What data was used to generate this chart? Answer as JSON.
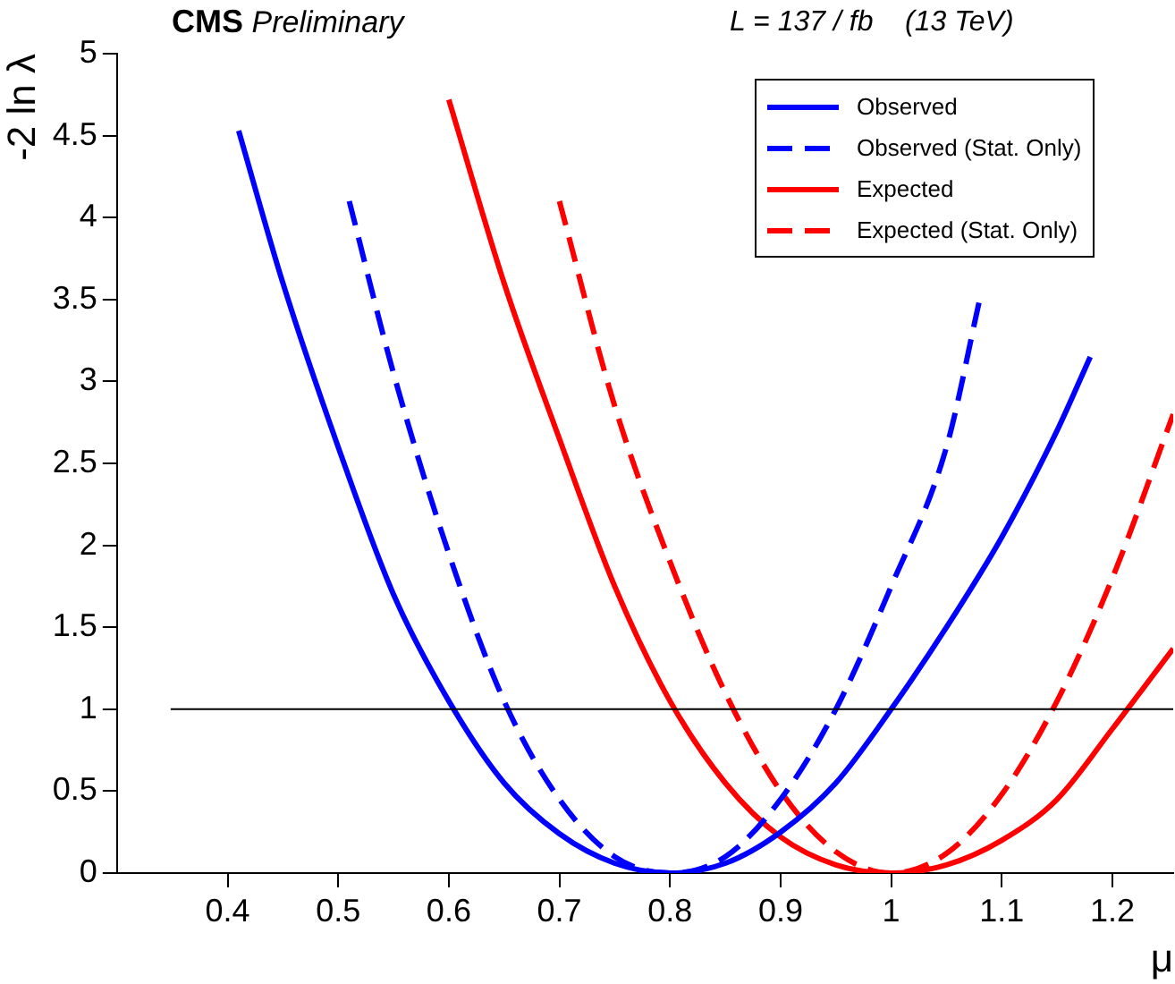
{
  "chart_data": {
    "type": "line",
    "title": "CMS",
    "subtitle": "Preliminary",
    "annotations": [
      "L = 137 / fb    (13 TeV)"
    ],
    "xlabel": "μ",
    "ylabel": "-2 ln λ",
    "xlim": [
      0.3,
      1.255
    ],
    "xticks": [
      0.4,
      0.5,
      0.6,
      0.7,
      0.8,
      0.9,
      1,
      1.1,
      1.2
    ],
    "ylim": [
      0,
      5
    ],
    "yticks": [
      0,
      0.5,
      1,
      1.5,
      2,
      2.5,
      3,
      3.5,
      4,
      4.5,
      5
    ],
    "grid": false,
    "legend": "top right",
    "marker": "none",
    "ref_lines": [
      {
        "axis": "y",
        "value": 1,
        "color": "#000000"
      }
    ],
    "series": [
      {
        "name": "Observed",
        "color": "#0000ff",
        "line_style": "solid",
        "x": [
          0.41,
          0.45,
          0.5,
          0.55,
          0.6,
          0.65,
          0.7,
          0.75,
          0.8,
          0.85,
          0.9,
          0.95,
          1.0,
          1.05,
          1.1,
          1.15,
          1.18
        ],
        "values": [
          4.53,
          3.6,
          2.6,
          1.7,
          1.05,
          0.55,
          0.24,
          0.06,
          0,
          0.06,
          0.25,
          0.55,
          1.0,
          1.5,
          2.05,
          2.7,
          3.15
        ]
      },
      {
        "name": "Observed (Stat. Only)",
        "color": "#0000ff",
        "line_style": "dashed",
        "x": [
          0.51,
          0.55,
          0.6,
          0.65,
          0.7,
          0.75,
          0.8,
          0.85,
          0.9,
          0.95,
          1.0,
          1.05,
          1.08
        ],
        "values": [
          4.1,
          3.05,
          1.95,
          1.05,
          0.45,
          0.1,
          0,
          0.1,
          0.45,
          1.0,
          1.75,
          2.6,
          3.5
        ]
      },
      {
        "name": "Expected",
        "color": "#ff0000",
        "line_style": "solid",
        "x": [
          0.6,
          0.65,
          0.7,
          0.75,
          0.8,
          0.85,
          0.9,
          0.95,
          1.0,
          1.05,
          1.1,
          1.15,
          1.2,
          1.255
        ],
        "values": [
          4.72,
          3.6,
          2.65,
          1.75,
          1.05,
          0.55,
          0.22,
          0.05,
          0,
          0.05,
          0.2,
          0.45,
          0.88,
          1.37
        ]
      },
      {
        "name": "Expected (Stat. Only)",
        "color": "#ff0000",
        "line_style": "dashed",
        "x": [
          0.7,
          0.75,
          0.8,
          0.85,
          0.9,
          0.95,
          1.0,
          1.05,
          1.1,
          1.15,
          1.2,
          1.255
        ],
        "values": [
          4.1,
          2.85,
          1.9,
          1.1,
          0.5,
          0.13,
          0,
          0.12,
          0.48,
          1.05,
          1.8,
          2.8
        ]
      }
    ]
  }
}
